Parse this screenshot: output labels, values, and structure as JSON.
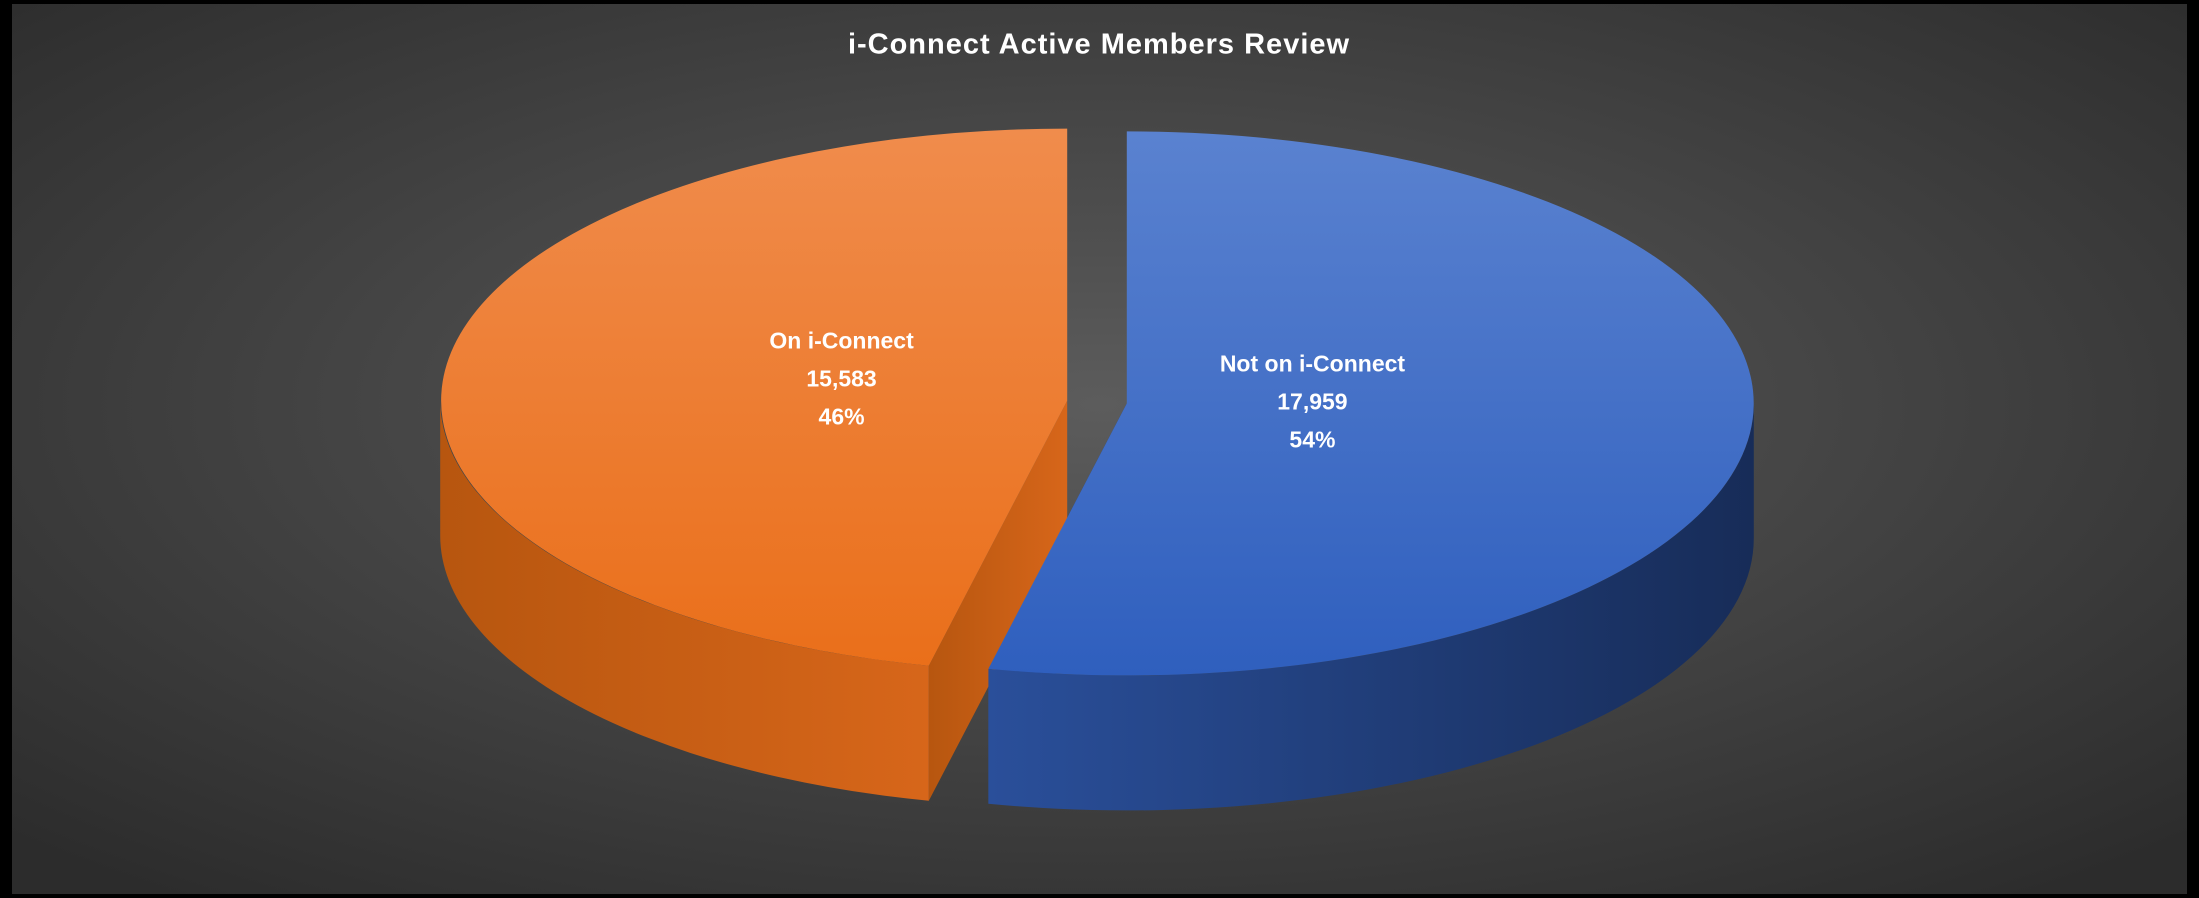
{
  "chart_data": {
    "type": "pie3d",
    "title": "i-Connect Active Members Review",
    "categories": [
      "Not on i-Connect",
      "On i-Connect"
    ],
    "values": [
      17959,
      15583
    ],
    "value_labels": [
      "17,959",
      "15,583"
    ],
    "percentages": [
      54,
      46
    ],
    "percentage_labels": [
      "54%",
      "46%"
    ],
    "colors": [
      "#4472c4",
      "#ed7d31"
    ]
  }
}
